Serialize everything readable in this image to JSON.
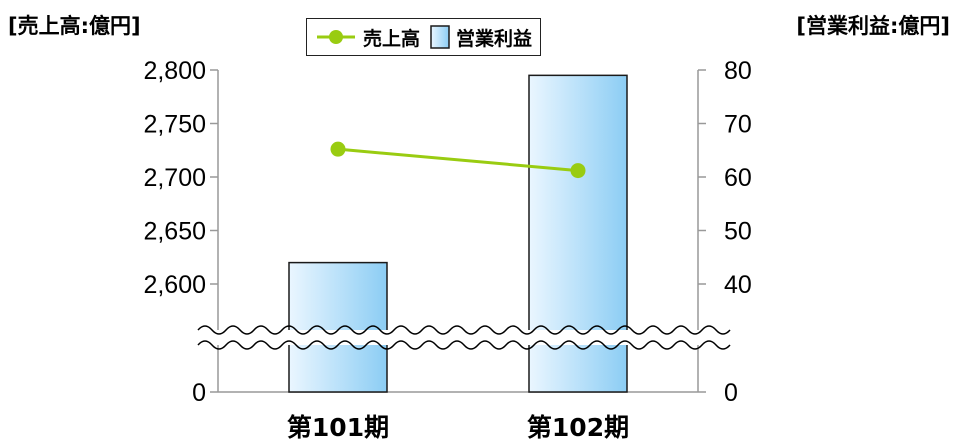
{
  "left_axis_title": "[売上高:億円]",
  "right_axis_title": "[営業利益:億円]",
  "legend": {
    "series1": "売上高",
    "series2": "営業利益"
  },
  "colors": {
    "line": "#99cc11",
    "bar_light": "#eaf6ff",
    "bar_dark": "#8ccdf4",
    "bar_border": "#1a1a1a",
    "axis": "#999999"
  },
  "chart_data": {
    "type": "bar",
    "categories": [
      "第101期",
      "第102期"
    ],
    "series": [
      {
        "name": "営業利益",
        "type": "bar",
        "axis": "right",
        "values": [
          44,
          79
        ]
      },
      {
        "name": "売上高",
        "type": "line",
        "axis": "left",
        "values": [
          2726,
          2706
        ]
      }
    ],
    "left_axis": {
      "ticks": [
        0,
        2600,
        2650,
        2700,
        2750,
        2800
      ],
      "tick_labels": [
        "0",
        "2,600",
        "2,650",
        "2,700",
        "2,750",
        "2,800"
      ],
      "broken": true
    },
    "right_axis": {
      "ticks": [
        0,
        40,
        50,
        60,
        70,
        80
      ],
      "tick_labels": [
        "0",
        "40",
        "50",
        "60",
        "70",
        "80"
      ],
      "broken": true
    }
  }
}
